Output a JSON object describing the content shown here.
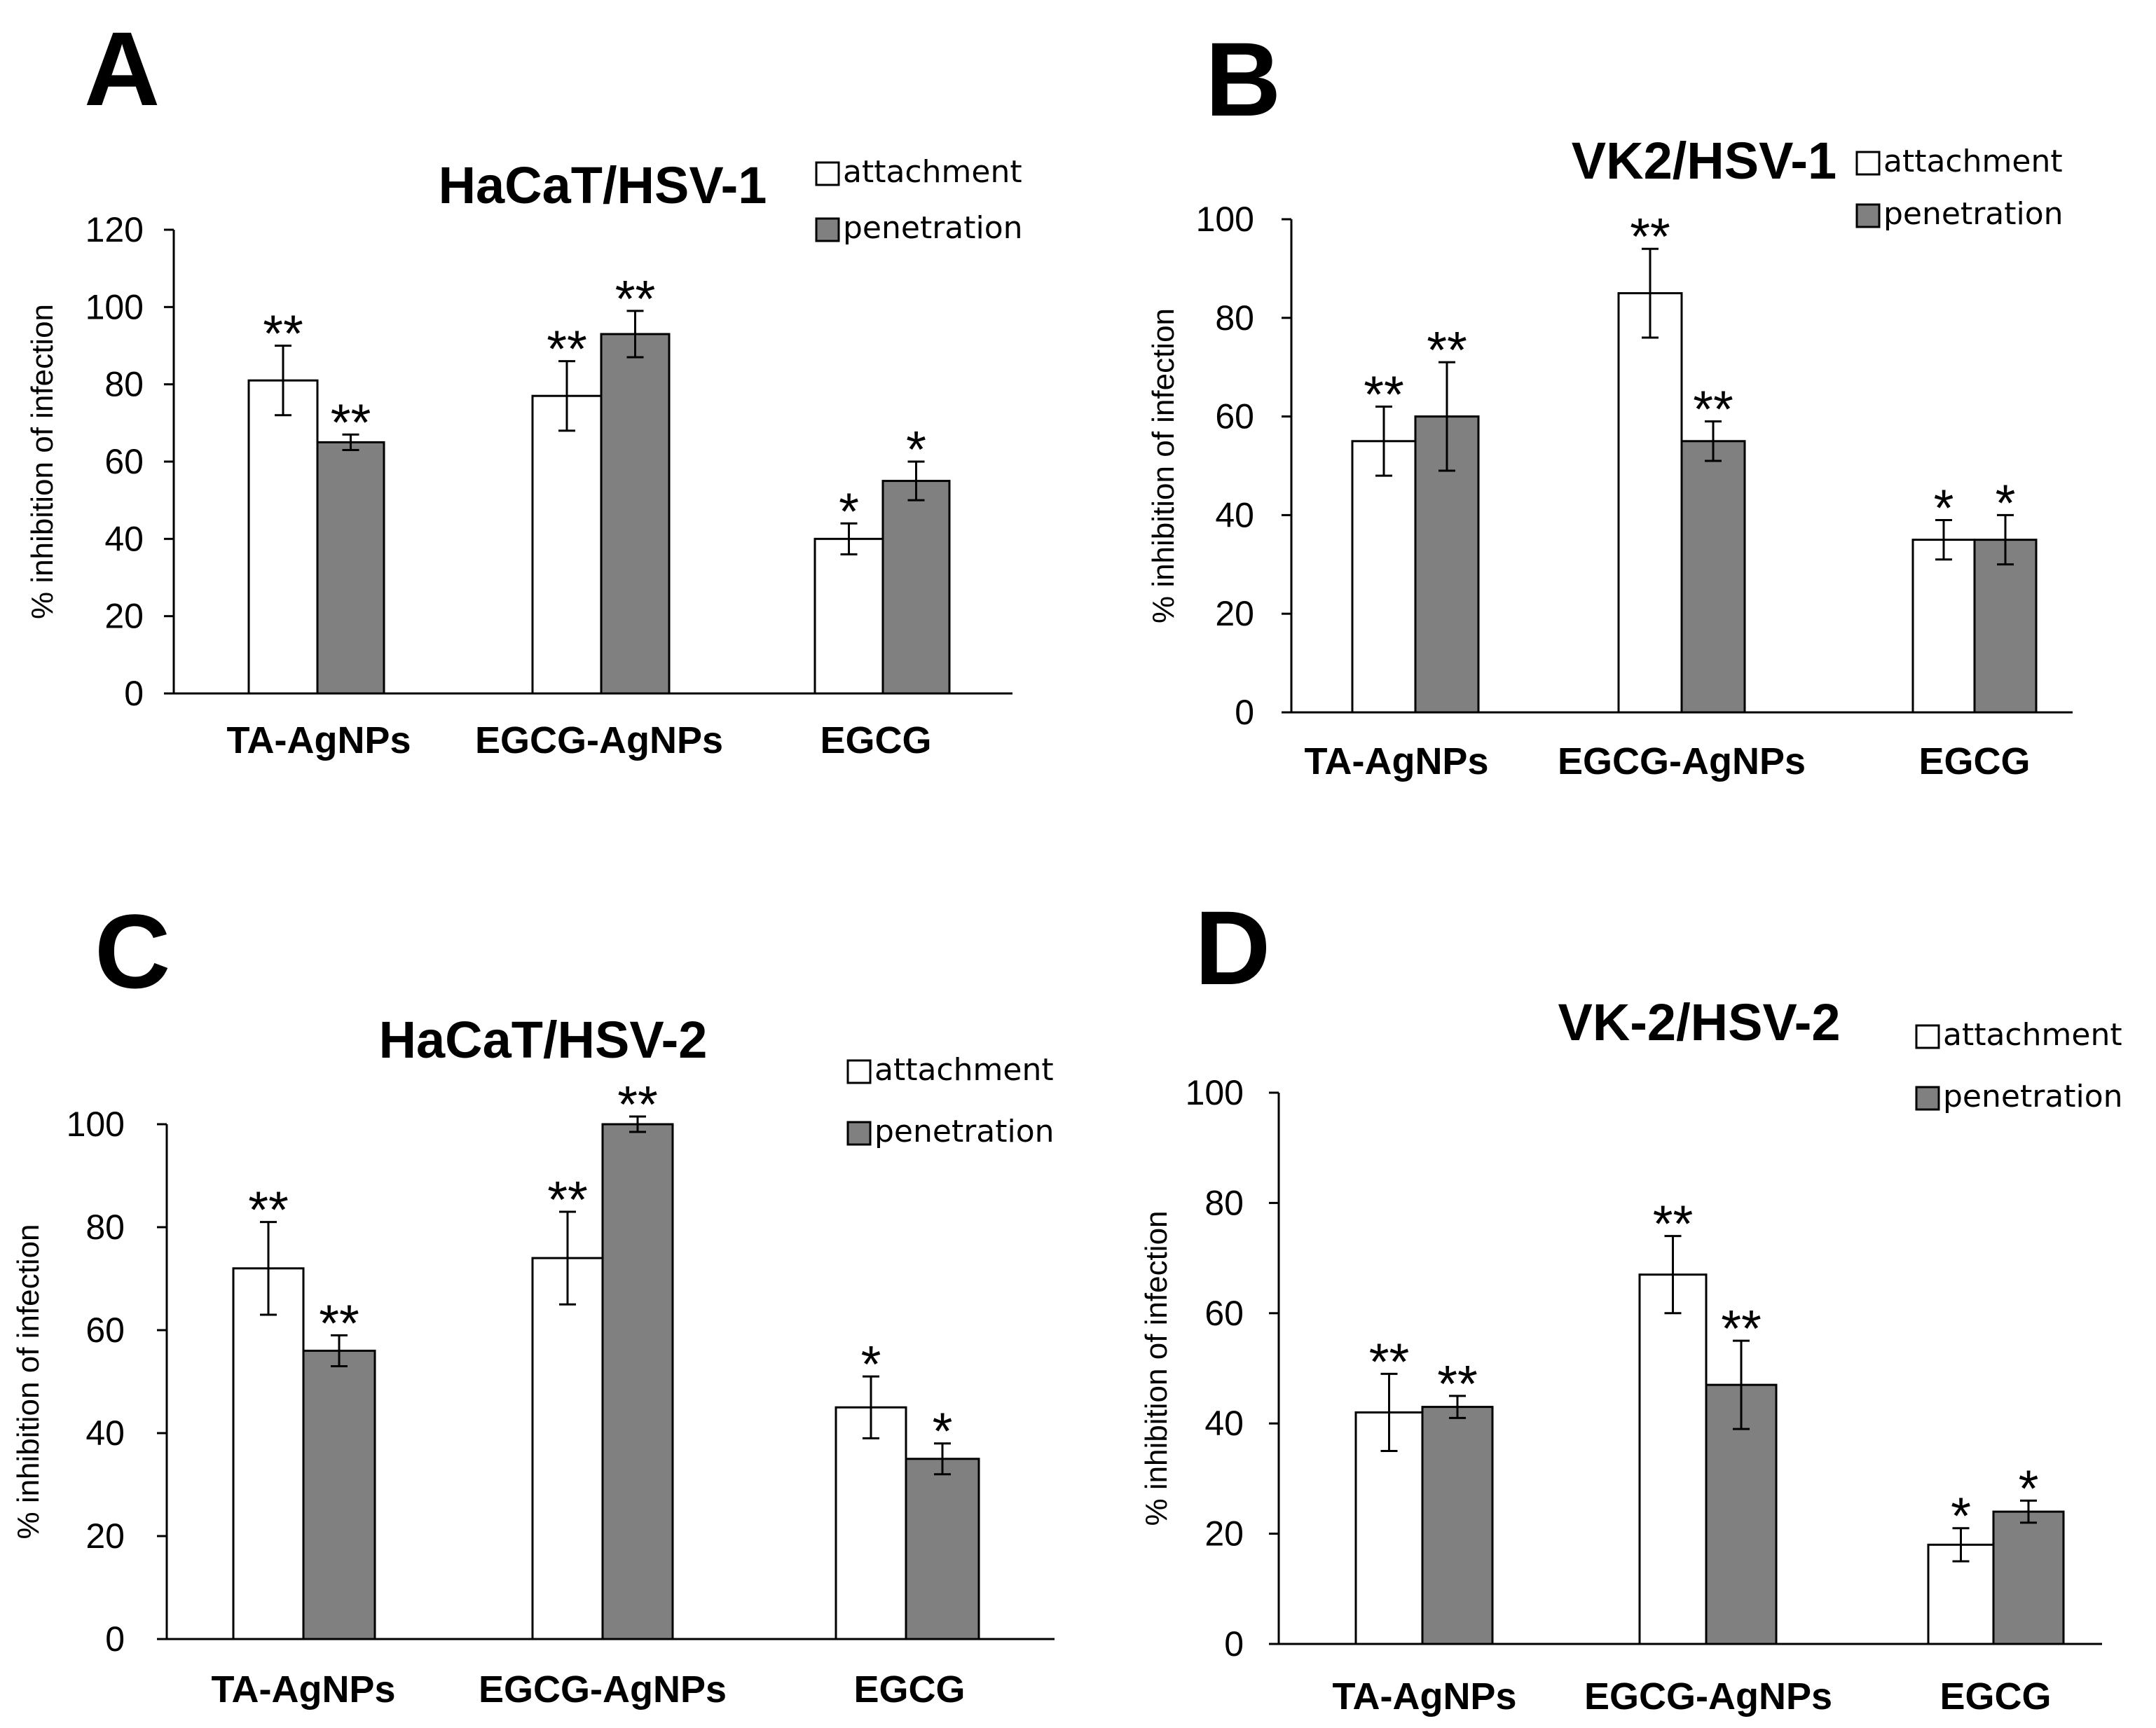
{
  "colors": {
    "attachment": "#ffffff",
    "penetration": "#808080",
    "stroke": "#000000"
  },
  "chart_data": [
    {
      "type": "bar",
      "panel": "A",
      "title": "HaCaT/HSV-1",
      "ylabel": "% inhibition of infection",
      "ylim": [
        0,
        120
      ],
      "yticks": [
        0,
        20,
        40,
        60,
        80,
        100,
        120
      ],
      "categories": [
        "TA-AgNPs",
        "EGCG-AgNPs",
        "EGCG"
      ],
      "legend": [
        "attachment",
        "penetration"
      ],
      "series": [
        {
          "name": "attachment",
          "values": [
            81,
            77,
            40
          ],
          "errors": [
            9,
            9,
            4
          ],
          "sig": [
            "**",
            "**",
            "*"
          ]
        },
        {
          "name": "penetration",
          "values": [
            65,
            93,
            55
          ],
          "errors": [
            2,
            6,
            5
          ],
          "sig": [
            "**",
            "**",
            "*"
          ]
        }
      ]
    },
    {
      "type": "bar",
      "panel": "B",
      "title": "VK2/HSV-1",
      "ylabel": "% inhibition of infection",
      "ylim": [
        0,
        100
      ],
      "yticks": [
        0,
        20,
        40,
        60,
        80,
        100
      ],
      "categories": [
        "TA-AgNPs",
        "EGCG-AgNPs",
        "EGCG"
      ],
      "legend": [
        "attachment",
        "penetration"
      ],
      "series": [
        {
          "name": "attachment",
          "values": [
            55,
            85,
            35
          ],
          "errors": [
            7,
            9,
            4
          ],
          "sig": [
            "**",
            "**",
            "*"
          ]
        },
        {
          "name": "penetration",
          "values": [
            60,
            55,
            35
          ],
          "errors": [
            11,
            4,
            5
          ],
          "sig": [
            "**",
            "**",
            "*"
          ]
        }
      ]
    },
    {
      "type": "bar",
      "panel": "C",
      "title": "HaCaT/HSV-2",
      "ylabel": "% inhibition of infection",
      "ylim": [
        0,
        100
      ],
      "yticks": [
        0,
        20,
        40,
        60,
        80,
        100
      ],
      "categories": [
        "TA-AgNPs",
        "EGCG-AgNPs",
        "EGCG"
      ],
      "legend": [
        "attachment",
        "penetration"
      ],
      "series": [
        {
          "name": "attachment",
          "values": [
            72,
            74,
            45
          ],
          "errors": [
            9,
            9,
            6
          ],
          "sig": [
            "**",
            "**",
            "*"
          ]
        },
        {
          "name": "penetration",
          "values": [
            56,
            100,
            35
          ],
          "errors": [
            3,
            1.5,
            3
          ],
          "sig": [
            "**",
            "**",
            "*"
          ]
        }
      ]
    },
    {
      "type": "bar",
      "panel": "D",
      "title": "VK-2/HSV-2",
      "ylabel": "% inhibition of infection",
      "ylim": [
        0,
        100
      ],
      "yticks": [
        0,
        20,
        40,
        60,
        80,
        100
      ],
      "categories": [
        "TA-AgNPs",
        "EGCG-AgNPs",
        "EGCG"
      ],
      "legend": [
        "attachment",
        "penetration"
      ],
      "series": [
        {
          "name": "attachment",
          "values": [
            42,
            67,
            18
          ],
          "errors": [
            7,
            7,
            3
          ],
          "sig": [
            "**",
            "**",
            "*"
          ]
        },
        {
          "name": "penetration",
          "values": [
            43,
            47,
            24
          ],
          "errors": [
            2,
            8,
            2
          ],
          "sig": [
            "**",
            "**",
            "*"
          ]
        }
      ]
    }
  ]
}
